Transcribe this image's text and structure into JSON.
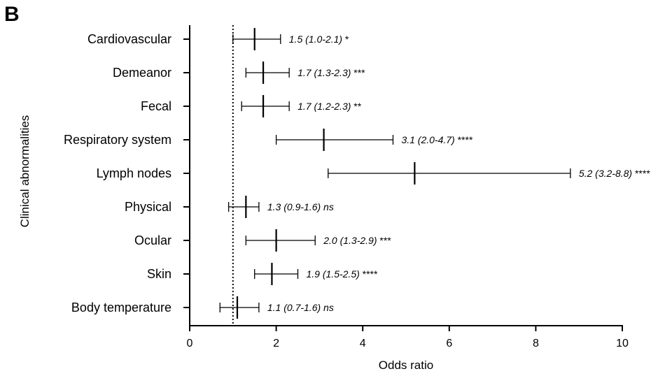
{
  "panel_label": "B",
  "chart_data": {
    "type": "forest",
    "xlabel": "Odds ratio",
    "ylabel": "Clinical abnormalities",
    "xlim": [
      0,
      10
    ],
    "xticks": [
      0,
      2,
      4,
      6,
      8,
      10
    ],
    "reference_line": 1,
    "grid": false,
    "rows": [
      {
        "label": "Cardiovascular",
        "or": 1.5,
        "ci_low": 1.0,
        "ci_high": 2.1,
        "annotation": "1.5 (1.0-2.1)",
        "sig": "*"
      },
      {
        "label": "Demeanor",
        "or": 1.7,
        "ci_low": 1.3,
        "ci_high": 2.3,
        "annotation": "1.7 (1.3-2.3)",
        "sig": "***"
      },
      {
        "label": "Fecal",
        "or": 1.7,
        "ci_low": 1.2,
        "ci_high": 2.3,
        "annotation": "1.7 (1.2-2.3)",
        "sig": "**"
      },
      {
        "label": "Respiratory system",
        "or": 3.1,
        "ci_low": 2.0,
        "ci_high": 4.7,
        "annotation": "3.1 (2.0-4.7)",
        "sig": "****"
      },
      {
        "label": "Lymph nodes",
        "or": 5.2,
        "ci_low": 3.2,
        "ci_high": 8.8,
        "annotation": "5.2 (3.2-8.8)",
        "sig": "****"
      },
      {
        "label": "Physical",
        "or": 1.3,
        "ci_low": 0.9,
        "ci_high": 1.6,
        "annotation": "1.3 (0.9-1.6)",
        "sig": "ns"
      },
      {
        "label": "Ocular",
        "or": 2.0,
        "ci_low": 1.3,
        "ci_high": 2.9,
        "annotation": "2.0 (1.3-2.9)",
        "sig": "***"
      },
      {
        "label": "Skin",
        "or": 1.9,
        "ci_low": 1.5,
        "ci_high": 2.5,
        "annotation": "1.9 (1.5-2.5)",
        "sig": "****"
      },
      {
        "label": "Body temperature",
        "or": 1.1,
        "ci_low": 0.7,
        "ci_high": 1.6,
        "annotation": "1.1 (0.7-1.6)",
        "sig": "ns"
      }
    ]
  }
}
